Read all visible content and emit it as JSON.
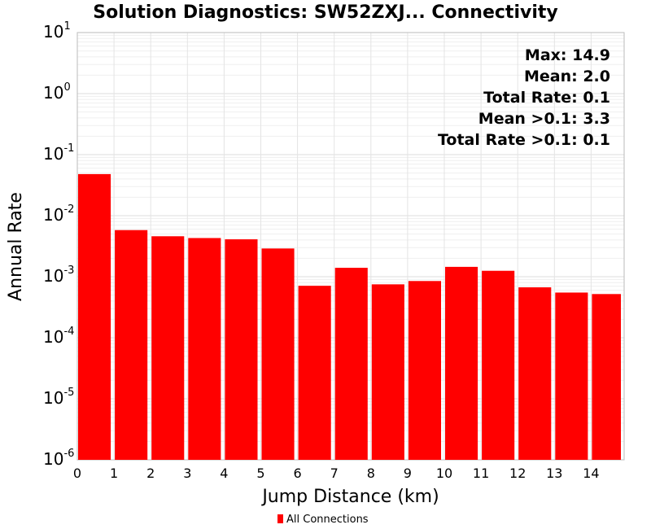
{
  "chart_data": {
    "type": "bar",
    "title": "Solution Diagnostics: SW52ZXJ... Connectivity",
    "xlabel": "Jump Distance (km)",
    "ylabel": "Annual Rate",
    "yscale": "log",
    "ylim": [
      1e-06,
      10
    ],
    "xlim": [
      0,
      14.9
    ],
    "x_ticks": [
      "0",
      "1",
      "2",
      "3",
      "4",
      "5",
      "6",
      "7",
      "8",
      "9",
      "10",
      "11",
      "12",
      "13",
      "14"
    ],
    "y_ticks": [
      {
        "base": "10",
        "exp": "1"
      },
      {
        "base": "10",
        "exp": "0"
      },
      {
        "base": "10",
        "exp": "-1"
      },
      {
        "base": "10",
        "exp": "-2"
      },
      {
        "base": "10",
        "exp": "-3"
      },
      {
        "base": "10",
        "exp": "-4"
      },
      {
        "base": "10",
        "exp": "-5"
      },
      {
        "base": "10",
        "exp": "-6"
      }
    ],
    "grid": true,
    "bar_color": "#ff0000",
    "bins": [
      {
        "x0": 0,
        "x1": 1,
        "value": 0.048
      },
      {
        "x0": 1,
        "x1": 2,
        "value": 0.0058
      },
      {
        "x0": 2,
        "x1": 3,
        "value": 0.0046
      },
      {
        "x0": 3,
        "x1": 4,
        "value": 0.0043
      },
      {
        "x0": 4,
        "x1": 5,
        "value": 0.0041
      },
      {
        "x0": 5,
        "x1": 6,
        "value": 0.0029
      },
      {
        "x0": 6,
        "x1": 7,
        "value": 0.00071
      },
      {
        "x0": 7,
        "x1": 8,
        "value": 0.0014
      },
      {
        "x0": 8,
        "x1": 9,
        "value": 0.00075
      },
      {
        "x0": 9,
        "x1": 10,
        "value": 0.00085
      },
      {
        "x0": 10,
        "x1": 11,
        "value": 0.00145
      },
      {
        "x0": 11,
        "x1": 12,
        "value": 0.00125
      },
      {
        "x0": 12,
        "x1": 13,
        "value": 0.00067
      },
      {
        "x0": 13,
        "x1": 14,
        "value": 0.00055
      },
      {
        "x0": 14,
        "x1": 14.9,
        "value": 0.00052
      }
    ],
    "annotations": [
      "Max: 14.9",
      "Mean: 2.0",
      "Total Rate: 0.1",
      "Mean >0.1: 3.3",
      "Total Rate >0.1: 0.1"
    ],
    "legend": {
      "position": "bottom",
      "entries": [
        {
          "name": "All Connections",
          "color": "#ff0000"
        }
      ]
    }
  }
}
